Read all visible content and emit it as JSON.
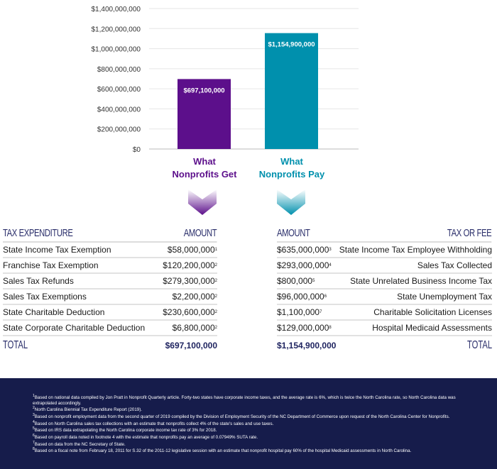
{
  "chart_data": {
    "type": "bar",
    "categories": [
      "What Nonprofits Get",
      "What Nonprofits Pay"
    ],
    "values": [
      697100000,
      1154900000
    ],
    "data_labels": [
      "$697,100,000",
      "$1,154,900,000"
    ],
    "ylim": [
      0,
      1400000000
    ],
    "yticks": [
      0,
      200000000,
      400000000,
      600000000,
      800000000,
      1000000000,
      1200000000,
      1400000000
    ],
    "ytick_labels": [
      "$0",
      "$200,000,000",
      "$400,000,000",
      "$600,000,000",
      "$800,000,000",
      "$1,000,000,000",
      "$1,200,000,000",
      "$1,400,000,000"
    ],
    "grid": true,
    "colors": [
      "#5c0f8b",
      "#0090ad"
    ],
    "cat_lines": [
      [
        "What",
        "Nonprofits Get"
      ],
      [
        "What",
        "Nonprofits Pay"
      ]
    ]
  },
  "get_table": {
    "header": [
      "TAX EXPENDITURE",
      "AMOUNT"
    ],
    "rows": [
      {
        "name": "State Income Tax Exemption",
        "amount": "$58,000,000",
        "note": "1"
      },
      {
        "name": "Franchise Tax Exemption",
        "amount": "$120,200,000",
        "note": "2"
      },
      {
        "name": "Sales Tax Refunds",
        "amount": "$279,300,000",
        "note": "2"
      },
      {
        "name": "Sales Tax Exemptions",
        "amount": "$2,200,000",
        "note": "2"
      },
      {
        "name": "State Charitable Deduction",
        "amount": "$230,600,000",
        "note": "2"
      },
      {
        "name": "State Corporate Charitable Deduction",
        "amount": "$6,800,000",
        "note": "2"
      }
    ],
    "total_label": "TOTAL",
    "total": "$697,100,000"
  },
  "pay_table": {
    "header": [
      "AMOUNT",
      "TAX OR FEE"
    ],
    "rows": [
      {
        "name": "State Income Tax Employee Withholding",
        "amount": "$635,000,000",
        "note": "3"
      },
      {
        "name": "Sales Tax Collected",
        "amount": "$293,000,000",
        "note": "4"
      },
      {
        "name": "State Unrelated Business Income Tax",
        "amount": "$800,000",
        "note": "5"
      },
      {
        "name": "State Unemployment Tax",
        "amount": "$96,000,000",
        "note": "6"
      },
      {
        "name": "Charitable Solicitation Licenses",
        "amount": "$1,100,000",
        "note": "7"
      },
      {
        "name": "Hospital Medicaid Assessments",
        "amount": "$129,000,000",
        "note": "8"
      }
    ],
    "total_label": "TOTAL",
    "total": "$1,154,900,000"
  },
  "footnotes": [
    {
      "n": "1",
      "text": "Based on national data compiled by Jon Pratt in Nonprofit Quarterly article. Forty-two states have corporate income taxes, and the average rate is 6%, which is twice the North Carolina rate, so North Carolina data was extrapolated accordingly."
    },
    {
      "n": "2",
      "text": "North Carolina Biennial Tax Expenditure Report (2019)."
    },
    {
      "n": "3",
      "text": "Based on nonprofit employment data from the second quarter of 2019 compiled by the Division of Employment Security of the NC Department of Commerce upon request of the North Carolina Center for Nonprofits."
    },
    {
      "n": "4",
      "text": "Based on North Carolina sales tax collections with an estimate that nonprofits collect 4% of the state's sales and use taxes."
    },
    {
      "n": "5",
      "text": "Based on IRS data extrapolating the North Carolina corporate income tax rate of 3% for 2018."
    },
    {
      "n": "6",
      "text": "Based on payroll data noted in footnote 4 with the estimate that nonprofits pay an average of 0.07949% SUTA rate."
    },
    {
      "n": "7",
      "text": "Based on data from the NC Secretary of State."
    },
    {
      "n": "8",
      "text": "Based on a fiscal note from February 18, 2011 for S.32 of the 2011-12 legislative session with an estimate that nonprofit hospital pay 60% of the hospital Medicaid assessments in North Carolina."
    }
  ]
}
